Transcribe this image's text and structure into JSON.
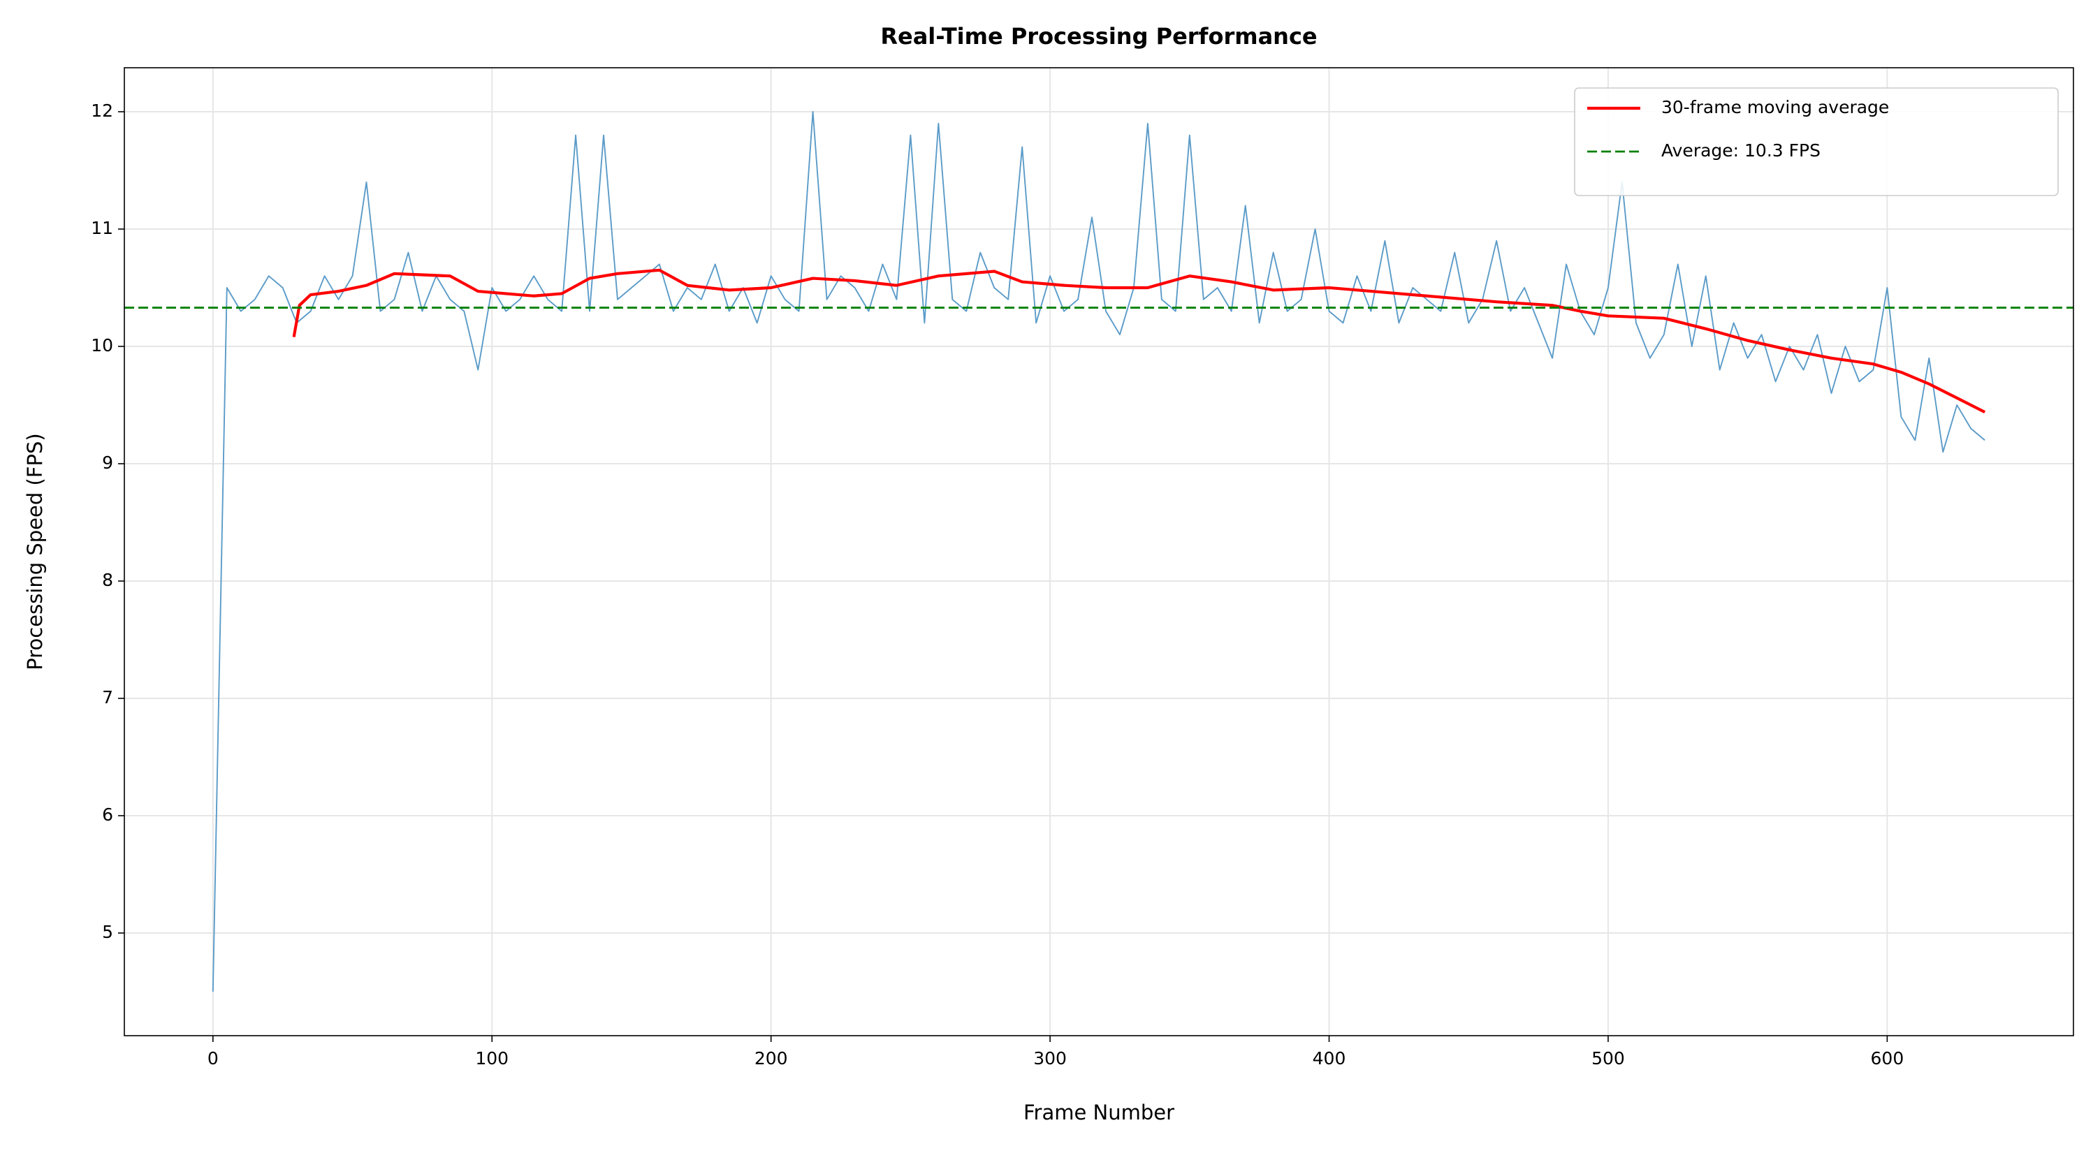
{
  "chart_data": {
    "type": "line",
    "title": "Real-Time Processing Performance",
    "x_label": "Frame Number",
    "y_label": "Processing Speed (FPS)",
    "xlim": [
      -31.75,
      666.75
    ],
    "xticks": [
      0,
      100,
      200,
      300,
      400,
      500,
      600
    ],
    "ylim": [
      4.125,
      12.375
    ],
    "yticks": [
      5,
      6,
      7,
      8,
      9,
      10,
      11,
      12
    ],
    "grid": true,
    "legend": "upper right",
    "series": [
      {
        "color": "#5b9bc8",
        "width": 1,
        "x": [
          0,
          5,
          10,
          15,
          20,
          25,
          30,
          35,
          40,
          45,
          50,
          55,
          60,
          65,
          70,
          75,
          80,
          85,
          90,
          95,
          100,
          105,
          110,
          115,
          120,
          125,
          130,
          135,
          140,
          145,
          150,
          155,
          160,
          165,
          170,
          175,
          180,
          185,
          190,
          195,
          200,
          205,
          210,
          215,
          220,
          225,
          230,
          235,
          240,
          245,
          250,
          255,
          260,
          265,
          270,
          275,
          280,
          285,
          290,
          295,
          300,
          305,
          310,
          315,
          320,
          325,
          330,
          335,
          340,
          345,
          350,
          355,
          360,
          365,
          370,
          375,
          380,
          385,
          390,
          395,
          400,
          405,
          410,
          415,
          420,
          425,
          430,
          435,
          440,
          445,
          450,
          455,
          460,
          465,
          470,
          475,
          480,
          485,
          490,
          495,
          500,
          505,
          510,
          515,
          520,
          525,
          530,
          535,
          540,
          545,
          550,
          555,
          560,
          565,
          570,
          575,
          580,
          585,
          590,
          595,
          600,
          605,
          610,
          615,
          620,
          625,
          630,
          635
        ],
        "values": [
          4.5,
          10.5,
          10.3,
          10.4,
          10.6,
          10.5,
          10.2,
          10.3,
          10.6,
          10.4,
          10.6,
          11.4,
          10.3,
          10.4,
          10.8,
          10.3,
          10.6,
          10.4,
          10.3,
          9.8,
          10.5,
          10.3,
          10.4,
          10.6,
          10.4,
          10.3,
          11.8,
          10.3,
          11.8,
          10.4,
          10.5,
          10.6,
          10.7,
          10.3,
          10.5,
          10.4,
          10.7,
          10.3,
          10.5,
          10.2,
          10.6,
          10.4,
          10.3,
          12.0,
          10.4,
          10.6,
          10.5,
          10.3,
          10.7,
          10.4,
          11.8,
          10.2,
          11.9,
          10.4,
          10.3,
          10.8,
          10.5,
          10.4,
          11.7,
          10.2,
          10.6,
          10.3,
          10.4,
          11.1,
          10.3,
          10.1,
          10.5,
          11.9,
          10.4,
          10.3,
          11.8,
          10.4,
          10.5,
          10.3,
          11.2,
          10.2,
          10.8,
          10.3,
          10.4,
          11.0,
          10.3,
          10.2,
          10.6,
          10.3,
          10.9,
          10.2,
          10.5,
          10.4,
          10.3,
          10.8,
          10.2,
          10.4,
          10.9,
          10.3,
          10.5,
          10.2,
          9.9,
          10.7,
          10.3,
          10.1,
          10.5,
          11.4,
          10.2,
          9.9,
          10.1,
          10.7,
          10.0,
          10.6,
          9.8,
          10.2,
          9.9,
          10.1,
          9.7,
          10.0,
          9.8,
          10.1,
          9.6,
          10.0,
          9.7,
          9.8,
          10.5,
          9.4,
          9.2,
          9.9,
          9.1,
          9.5,
          9.3,
          9.2
        ]
      },
      {
        "name": "30-frame moving average",
        "color": "#ff0000",
        "width": 2.2,
        "x": [
          29,
          31,
          35,
          45,
          55,
          65,
          75,
          85,
          95,
          105,
          115,
          125,
          135,
          145,
          160,
          170,
          185,
          200,
          215,
          230,
          245,
          260,
          280,
          290,
          305,
          320,
          335,
          350,
          365,
          380,
          400,
          420,
          440,
          460,
          480,
          490,
          500,
          520,
          535,
          550,
          565,
          580,
          595,
          605,
          615,
          625,
          635
        ],
        "values": [
          10.08,
          10.35,
          10.44,
          10.47,
          10.52,
          10.62,
          10.61,
          10.6,
          10.47,
          10.45,
          10.43,
          10.45,
          10.58,
          10.62,
          10.65,
          10.52,
          10.48,
          10.5,
          10.58,
          10.56,
          10.52,
          10.6,
          10.64,
          10.55,
          10.52,
          10.5,
          10.5,
          10.6,
          10.55,
          10.48,
          10.5,
          10.46,
          10.42,
          10.38,
          10.35,
          10.3,
          10.26,
          10.24,
          10.15,
          10.05,
          9.97,
          9.9,
          9.85,
          9.78,
          9.68,
          9.56,
          9.44
        ]
      },
      {
        "name": "Average: 10.3 FPS",
        "color": "#008000",
        "width": 1.5,
        "style": "dashed",
        "value": 10.33
      }
    ]
  }
}
